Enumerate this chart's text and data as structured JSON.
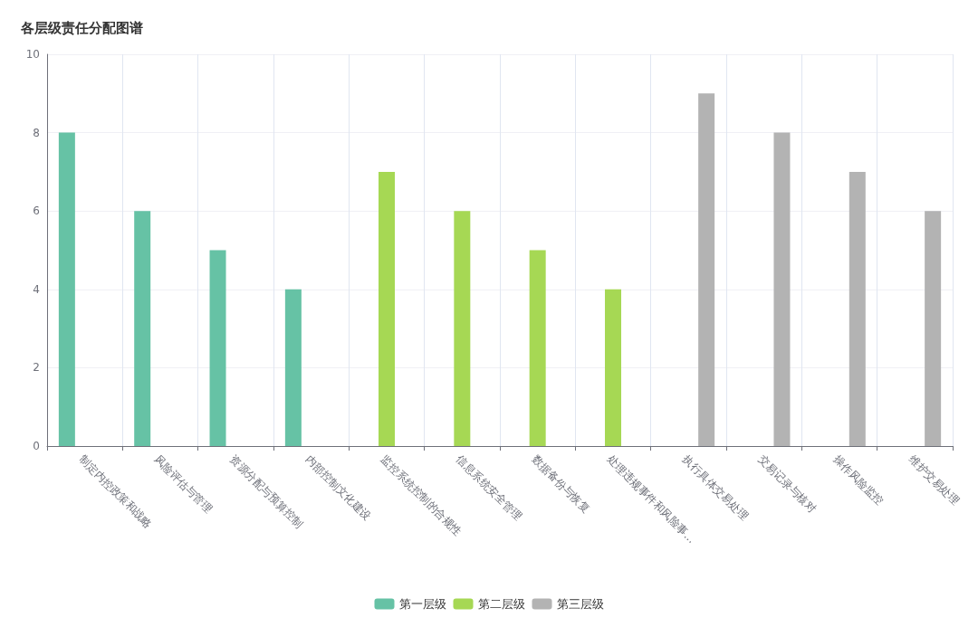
{
  "chart_data": {
    "type": "bar",
    "title": "各层级责任分配图谱",
    "categories": [
      "制定内控政策和战略",
      "风险评估与管理",
      "资源分配与预算控制",
      "内部控制文化建设",
      "监控系统控制的合规性",
      "信息系统安全管理",
      "数据备份与恢复",
      "处理违规事件和风险事...",
      "执行具体交易处理",
      "交易记录与核对",
      "操作风险监控",
      "维护交易处理"
    ],
    "series": [
      {
        "name": "第一层级",
        "color": "#66c2a5",
        "values": [
          8,
          6,
          5,
          4,
          null,
          null,
          null,
          null,
          null,
          null,
          null,
          null
        ]
      },
      {
        "name": "第二层级",
        "color": "#a6d854",
        "values": [
          null,
          null,
          null,
          null,
          7,
          6,
          5,
          4,
          null,
          null,
          null,
          null
        ]
      },
      {
        "name": "第三层级",
        "color": "#b3b3b3",
        "values": [
          null,
          null,
          null,
          null,
          null,
          null,
          null,
          null,
          9,
          8,
          7,
          6
        ]
      }
    ],
    "ylim": [
      0,
      10
    ],
    "yticks": [
      0,
      2,
      4,
      6,
      8,
      10
    ],
    "grid": true,
    "legend": "bottom"
  }
}
